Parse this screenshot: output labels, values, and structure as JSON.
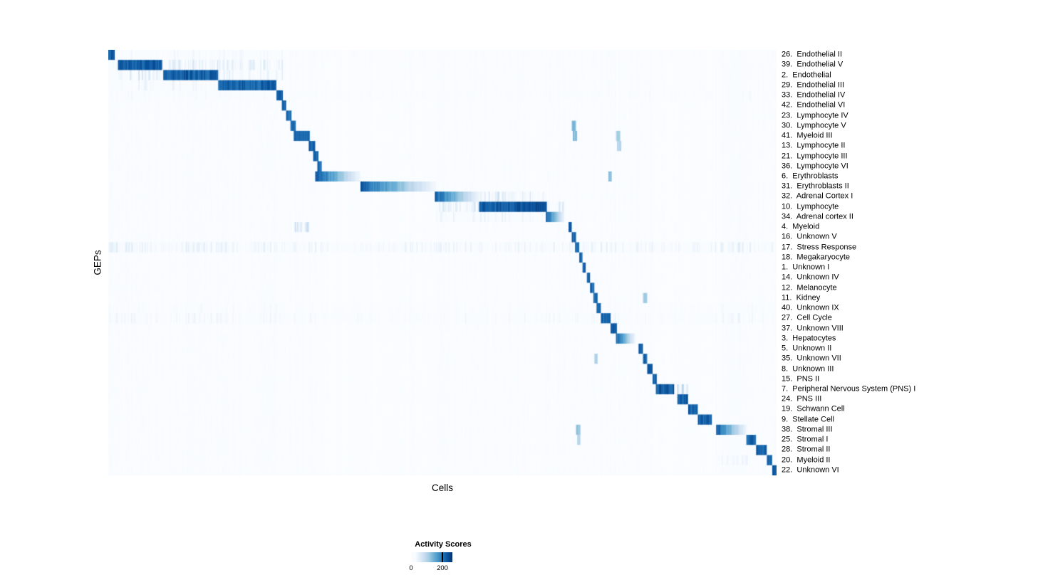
{
  "chart_data": {
    "type": "heatmap",
    "xlabel": "Cells",
    "ylabel": "GEPs",
    "legend": {
      "title": "Activity Scores",
      "min_tick": "0",
      "max_tick": "200"
    },
    "colormap": [
      "#fbfdff",
      "#f7fbff",
      "#deebf7",
      "#c6dbef",
      "#9ecae1",
      "#6baed6",
      "#4292c6",
      "#2171b5",
      "#08519c",
      "#08306b"
    ],
    "background_bands": [
      [
        0.0,
        0.262,
        0.045
      ],
      [
        0.266,
        0.322,
        0.03
      ],
      [
        0.488,
        0.657,
        0.03
      ],
      [
        0.655,
        0.684,
        0.06
      ],
      [
        0.69,
        0.76,
        0.025
      ],
      [
        0.748,
        0.768,
        0.03
      ],
      [
        0.793,
        0.816,
        0.05
      ],
      [
        0.908,
        1.001,
        0.06
      ]
    ],
    "rows": [
      {
        "label": "26.  Endothelial II",
        "streak": 0.07,
        "blocks": [
          [
            0.0,
            0.009,
            0.95,
            "flat"
          ],
          [
            0.009,
            0.262,
            0.18,
            "streak"
          ]
        ]
      },
      {
        "label": "39.  Endothelial V",
        "streak": 0.06,
        "blocks": [
          [
            0.014,
            0.08,
            0.93,
            "flat"
          ],
          [
            0.08,
            0.262,
            0.3,
            "streak"
          ],
          [
            0.0,
            0.014,
            0.22,
            "streak"
          ]
        ]
      },
      {
        "label": "2.  Endothelial",
        "streak": 0.06,
        "blocks": [
          [
            0.082,
            0.164,
            0.93,
            "flat"
          ],
          [
            0.014,
            0.082,
            0.34,
            "streak"
          ],
          [
            0.164,
            0.262,
            0.24,
            "streak"
          ]
        ]
      },
      {
        "label": "29.  Endothelial III",
        "streak": 0.06,
        "blocks": [
          [
            0.164,
            0.252,
            0.91,
            "flat"
          ],
          [
            0.014,
            0.164,
            0.2,
            "streak"
          ]
        ]
      },
      {
        "label": "33.  Endothelial IV",
        "streak": 0.09,
        "blocks": [
          [
            0.0,
            0.255,
            0.14,
            "streak"
          ],
          [
            0.252,
            0.261,
            0.9,
            "flat"
          ]
        ]
      },
      {
        "label": "42.  Endothelial VI",
        "blocks": [
          [
            0.259,
            0.266,
            0.9,
            "flat"
          ],
          [
            0.0,
            0.255,
            0.07,
            "streak"
          ]
        ]
      },
      {
        "label": "23.  Lymphocyte IV",
        "blocks": [
          [
            0.266,
            0.274,
            0.92,
            "flat"
          ]
        ]
      },
      {
        "label": "30.  Lymphocyte V",
        "blocks": [
          [
            0.272,
            0.281,
            0.92,
            "flat"
          ],
          [
            0.694,
            0.7,
            0.55,
            "flat"
          ]
        ]
      },
      {
        "label": "41.  Myeloid III",
        "blocks": [
          [
            0.278,
            0.301,
            0.9,
            "flat"
          ],
          [
            0.695,
            0.701,
            0.55,
            "flat"
          ],
          [
            0.76,
            0.766,
            0.45,
            "flat"
          ]
        ]
      },
      {
        "label": "13.  Lymphocyte II",
        "blocks": [
          [
            0.3,
            0.309,
            0.9,
            "flat"
          ],
          [
            0.762,
            0.768,
            0.4,
            "flat"
          ]
        ]
      },
      {
        "label": "21.  Lymphocyte III",
        "blocks": [
          [
            0.307,
            0.315,
            0.9,
            "flat"
          ]
        ]
      },
      {
        "label": "36.  Lymphocyte VI",
        "blocks": [
          [
            0.313,
            0.32,
            0.88,
            "flat"
          ]
        ]
      },
      {
        "label": "6.  Erythroblasts",
        "blocks": [
          [
            0.31,
            0.377,
            0.95,
            "fadeR"
          ],
          [
            0.748,
            0.754,
            0.55,
            "flat"
          ]
        ]
      },
      {
        "label": "31.  Erythroblasts II",
        "blocks": [
          [
            0.377,
            0.49,
            0.92,
            "fadeR"
          ]
        ]
      },
      {
        "label": "32.  Adrenal Cortex I",
        "blocks": [
          [
            0.488,
            0.556,
            0.93,
            "fadeR"
          ],
          [
            0.556,
            0.657,
            0.32,
            "streak"
          ]
        ]
      },
      {
        "label": "10.  Lymphocyte",
        "blocks": [
          [
            0.555,
            0.657,
            0.95,
            "flat"
          ],
          [
            0.49,
            0.555,
            0.33,
            "streak"
          ],
          [
            0.657,
            0.683,
            0.3,
            "streak"
          ]
        ]
      },
      {
        "label": "34.  Adrenal cortex II",
        "blocks": [
          [
            0.655,
            0.683,
            0.92,
            "fadeR"
          ],
          [
            0.49,
            0.655,
            0.22,
            "streak"
          ]
        ]
      },
      {
        "label": "4.  Myeloid",
        "blocks": [
          [
            0.688,
            0.694,
            0.9,
            "flat"
          ],
          [
            0.278,
            0.301,
            0.4,
            "streak"
          ]
        ]
      },
      {
        "label": "16.  Unknown V",
        "blocks": [
          [
            0.694,
            0.7,
            0.9,
            "flat"
          ]
        ]
      },
      {
        "label": "17.  Stress Response",
        "streak": 0.2,
        "blocks": [
          [
            0.699,
            0.705,
            0.9,
            "flat"
          ]
        ]
      },
      {
        "label": "18.  Megakaryocyte",
        "blocks": [
          [
            0.705,
            0.71,
            0.9,
            "flat"
          ]
        ]
      },
      {
        "label": "1.  Unknown I",
        "blocks": [
          [
            0.71,
            0.715,
            0.9,
            "flat"
          ]
        ]
      },
      {
        "label": "14.  Unknown IV",
        "blocks": [
          [
            0.716,
            0.721,
            0.9,
            "flat"
          ]
        ]
      },
      {
        "label": "12.  Melanocyte",
        "blocks": [
          [
            0.721,
            0.727,
            0.9,
            "flat"
          ]
        ]
      },
      {
        "label": "11.  Kidney",
        "blocks": [
          [
            0.726,
            0.732,
            0.9,
            "flat"
          ],
          [
            0.8,
            0.806,
            0.45,
            "flat"
          ]
        ]
      },
      {
        "label": "40.  Unknown IX",
        "streak": 0.1,
        "blocks": [
          [
            0.73,
            0.737,
            0.9,
            "flat"
          ]
        ]
      },
      {
        "label": "27.  Cell Cycle",
        "streak": 0.14,
        "blocks": [
          [
            0.737,
            0.751,
            0.89,
            "flat"
          ]
        ]
      },
      {
        "label": "37.  Unknown VIII",
        "blocks": [
          [
            0.751,
            0.761,
            0.9,
            "flat"
          ]
        ]
      },
      {
        "label": "3.  Hepatocytes",
        "blocks": [
          [
            0.76,
            0.789,
            0.91,
            "fadeR"
          ]
        ]
      },
      {
        "label": "5.  Unknown II",
        "blocks": [
          [
            0.793,
            0.8,
            0.9,
            "flat"
          ]
        ]
      },
      {
        "label": "35.  Unknown VII",
        "blocks": [
          [
            0.8,
            0.807,
            0.9,
            "flat"
          ],
          [
            0.728,
            0.733,
            0.45,
            "flat"
          ]
        ]
      },
      {
        "label": "8.  Unknown III",
        "blocks": [
          [
            0.807,
            0.814,
            0.9,
            "flat"
          ]
        ]
      },
      {
        "label": "15.  PNS II",
        "blocks": [
          [
            0.814,
            0.821,
            0.9,
            "flat"
          ]
        ]
      },
      {
        "label": "7.  Peripheral Nervous System (PNS) I",
        "blocks": [
          [
            0.82,
            0.846,
            0.95,
            "flat"
          ],
          [
            0.852,
            0.868,
            0.6,
            "streak"
          ]
        ]
      },
      {
        "label": "24.  PNS III",
        "blocks": [
          [
            0.851,
            0.868,
            0.92,
            "flat"
          ]
        ]
      },
      {
        "label": "19.  Schwann Cell",
        "blocks": [
          [
            0.867,
            0.883,
            0.91,
            "flat"
          ]
        ]
      },
      {
        "label": "9.  Stellate Cell",
        "blocks": [
          [
            0.883,
            0.904,
            0.93,
            "flat"
          ]
        ]
      },
      {
        "label": "38.  Stromal III",
        "blocks": [
          [
            0.91,
            0.956,
            0.91,
            "fadeR"
          ],
          [
            0.7,
            0.706,
            0.5,
            "flat"
          ]
        ]
      },
      {
        "label": "25.  Stromal I",
        "blocks": [
          [
            0.955,
            0.97,
            0.91,
            "flat"
          ],
          [
            0.702,
            0.707,
            0.45,
            "flat"
          ]
        ]
      },
      {
        "label": "28.  Stromal II",
        "blocks": [
          [
            0.97,
            0.986,
            0.91,
            "flat"
          ]
        ]
      },
      {
        "label": "20.  Myeloid II",
        "blocks": [
          [
            0.986,
            0.994,
            0.91,
            "flat"
          ],
          [
            0.91,
            0.956,
            0.28,
            "streak"
          ]
        ]
      },
      {
        "label": "22.  Unknown VI",
        "blocks": [
          [
            0.993,
            1.001,
            0.91,
            "flat"
          ]
        ]
      }
    ]
  }
}
